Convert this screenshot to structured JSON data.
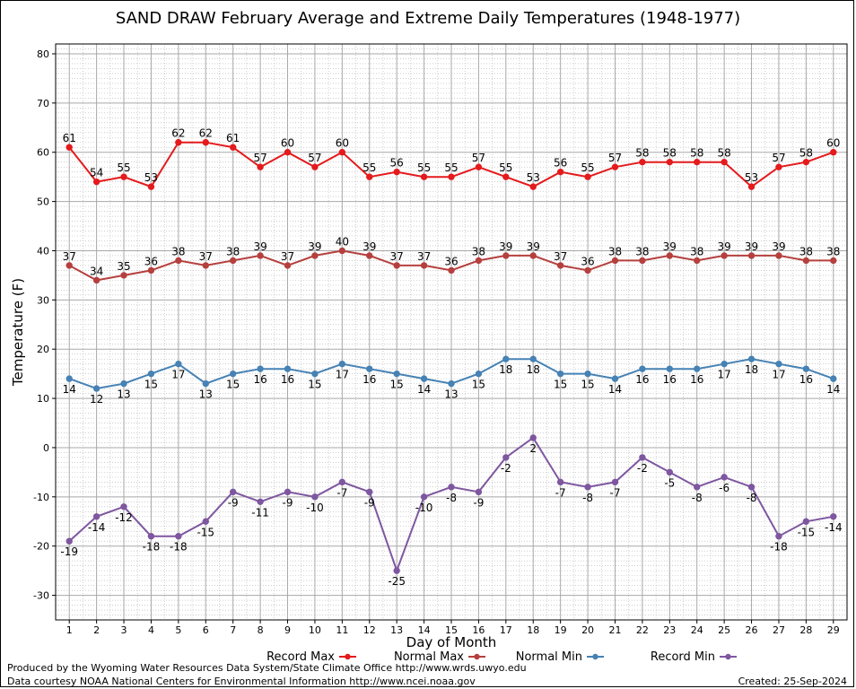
{
  "title": "SAND DRAW February Average and Extreme Daily Temperatures (1948-1977)",
  "footer": {
    "produced_by": "Produced by the Wyoming Water Resources Data System/State Climate Office http://www.wrds.uwyo.edu",
    "courtesy": "Data courtesy NOAA National Centers for Environmental Information http://www.ncei.noaa.gov",
    "created": "Created:  25-Sep-2024"
  },
  "chart_data": {
    "type": "line",
    "title": "SAND DRAW February Average and Extreme Daily Temperatures (1948-1977)",
    "xlabel": "Day of Month",
    "ylabel": "Temperature (F)",
    "xlim": [
      0.5,
      29.5
    ],
    "ylim": [
      -35,
      82
    ],
    "yticks": [
      -30,
      -20,
      -10,
      0,
      10,
      20,
      30,
      40,
      50,
      60,
      70,
      80
    ],
    "grid": true,
    "legend": "bottom",
    "x": [
      1,
      2,
      3,
      4,
      5,
      6,
      7,
      8,
      9,
      10,
      11,
      12,
      13,
      14,
      15,
      16,
      17,
      18,
      19,
      20,
      21,
      22,
      23,
      24,
      25,
      26,
      27,
      28,
      29
    ],
    "series": [
      {
        "name": "Record Max",
        "color": "#e41a1c",
        "values": [
          61,
          54,
          55,
          53,
          62,
          62,
          61,
          57,
          60,
          57,
          60,
          55,
          56,
          55,
          55,
          57,
          55,
          53,
          56,
          55,
          57,
          58,
          58,
          58,
          58,
          53,
          57,
          58,
          60
        ]
      },
      {
        "name": "Normal Max",
        "color": "#b5403e",
        "values": [
          37,
          34,
          35,
          36,
          38,
          37,
          38,
          39,
          37,
          39,
          40,
          39,
          37,
          37,
          36,
          38,
          39,
          39,
          37,
          36,
          38,
          38,
          39,
          38,
          39,
          39,
          39,
          38,
          38
        ]
      },
      {
        "name": "Normal Min",
        "color": "#4682b4",
        "values": [
          14,
          12,
          13,
          15,
          17,
          13,
          15,
          16,
          16,
          15,
          17,
          16,
          15,
          14,
          13,
          15,
          18,
          18,
          15,
          15,
          14,
          16,
          16,
          16,
          17,
          18,
          17,
          16,
          14
        ]
      },
      {
        "name": "Record Min",
        "color": "#7e57a0",
        "values": [
          -19,
          -14,
          -12,
          -18,
          -18,
          -15,
          -9,
          -11,
          -9,
          -10,
          -7,
          -9,
          -25,
          -10,
          -8,
          -9,
          -2,
          2,
          -7,
          -8,
          -7,
          -2,
          -5,
          -8,
          -6,
          -8,
          -18,
          -15,
          -14
        ]
      }
    ]
  }
}
